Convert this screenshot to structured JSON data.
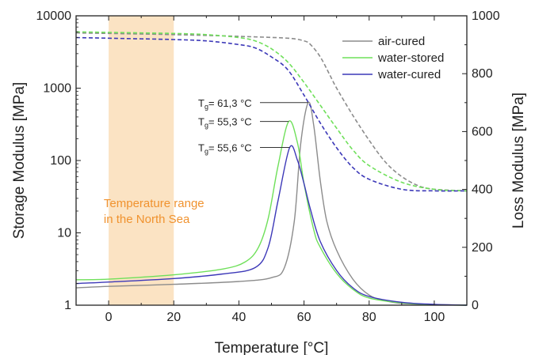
{
  "chart_data": {
    "type": "line",
    "xlabel": "Temperature [°C]",
    "ylabel_left": "Storage Modulus [MPa]",
    "ylabel_right": "Loss Modulus [MPa]",
    "xlim": [
      -10,
      110
    ],
    "ylim_left": [
      1,
      10000
    ],
    "ylim_right": [
      0,
      1000
    ],
    "left_scale": "log",
    "right_scale": "linear",
    "x_ticks": [
      0,
      20,
      40,
      60,
      80,
      100
    ],
    "y_left_ticks": [
      1,
      10,
      100,
      1000,
      10000
    ],
    "y_right_ticks": [
      0,
      200,
      400,
      600,
      800,
      1000
    ],
    "grid": false,
    "legend_position": "top-right",
    "highlight_band": {
      "x_range": [
        0,
        20
      ],
      "label_lines": [
        "Temperature range",
        "in the North Sea"
      ],
      "color": "#fbe3c3",
      "text_color": "#f0922e"
    },
    "annotations": [
      {
        "label": "T",
        "sub": "g",
        "value_text": "= 61,3 °C",
        "series": "air-cured",
        "x": 61.3,
        "y_right": 700
      },
      {
        "label": "T",
        "sub": "g",
        "value_text": "= 55,3 °C",
        "series": "water-stored",
        "x": 55.3,
        "y_right": 635
      },
      {
        "label": "T",
        "sub": "g",
        "value_text": "= 55,6 °C",
        "series": "water-cured",
        "x": 55.6,
        "y_right": 545
      }
    ],
    "series": [
      {
        "name": "air-cured",
        "color": "#8c8c8c",
        "storage_modulus": {
          "axis": "left",
          "style": "dashed",
          "x": [
            -10,
            0,
            20,
            40,
            55,
            60,
            62,
            65,
            68,
            70,
            75,
            80,
            85,
            90,
            95,
            100,
            110
          ],
          "y": [
            5800,
            5700,
            5500,
            5200,
            4900,
            4500,
            4000,
            2700,
            1500,
            1000,
            420,
            190,
            95,
            60,
            45,
            40,
            38
          ]
        },
        "loss_modulus": {
          "axis": "right",
          "style": "solid",
          "x": [
            -10,
            0,
            20,
            40,
            50,
            54,
            57,
            59,
            61.3,
            63,
            65,
            67,
            70,
            75,
            80,
            85,
            90,
            100,
            110
          ],
          "y": [
            60,
            65,
            72,
            82,
            95,
            130,
            290,
            560,
            700,
            620,
            430,
            290,
            190,
            90,
            35,
            15,
            6,
            2,
            0
          ]
        }
      },
      {
        "name": "water-stored",
        "color": "#6fe05a",
        "storage_modulus": {
          "axis": "left",
          "style": "dashed",
          "x": [
            -10,
            0,
            20,
            30,
            40,
            45,
            50,
            55,
            60,
            65,
            70,
            75,
            80,
            90,
            100,
            110
          ],
          "y": [
            6000,
            5900,
            5700,
            5500,
            5000,
            4500,
            3500,
            2300,
            1200,
            580,
            280,
            140,
            85,
            50,
            40,
            38
          ]
        },
        "loss_modulus": {
          "axis": "right",
          "style": "solid",
          "x": [
            -10,
            0,
            20,
            35,
            42,
            46,
            49,
            52,
            55.3,
            58,
            60,
            63,
            65,
            70,
            75,
            80,
            90,
            100,
            110
          ],
          "y": [
            88,
            90,
            105,
            125,
            150,
            200,
            300,
            480,
            635,
            560,
            420,
            260,
            200,
            110,
            55,
            25,
            8,
            2,
            0
          ]
        }
      },
      {
        "name": "water-cured",
        "color": "#3c38b8",
        "storage_modulus": {
          "axis": "left",
          "style": "dashed",
          "x": [
            -10,
            0,
            20,
            30,
            40,
            45,
            50,
            55,
            60,
            65,
            70,
            75,
            80,
            90,
            100,
            110
          ],
          "y": [
            5000,
            4900,
            4700,
            4500,
            4000,
            3600,
            2700,
            1800,
            800,
            330,
            150,
            80,
            55,
            40,
            38,
            38
          ]
        },
        "loss_modulus": {
          "axis": "right",
          "style": "solid",
          "x": [
            -10,
            0,
            20,
            35,
            45,
            49,
            52,
            55.6,
            58,
            60,
            62,
            65,
            70,
            75,
            80,
            90,
            100,
            110
          ],
          "y": [
            75,
            80,
            92,
            108,
            130,
            200,
            360,
            545,
            500,
            420,
            330,
            220,
            120,
            60,
            30,
            10,
            3,
            0
          ]
        }
      }
    ]
  }
}
